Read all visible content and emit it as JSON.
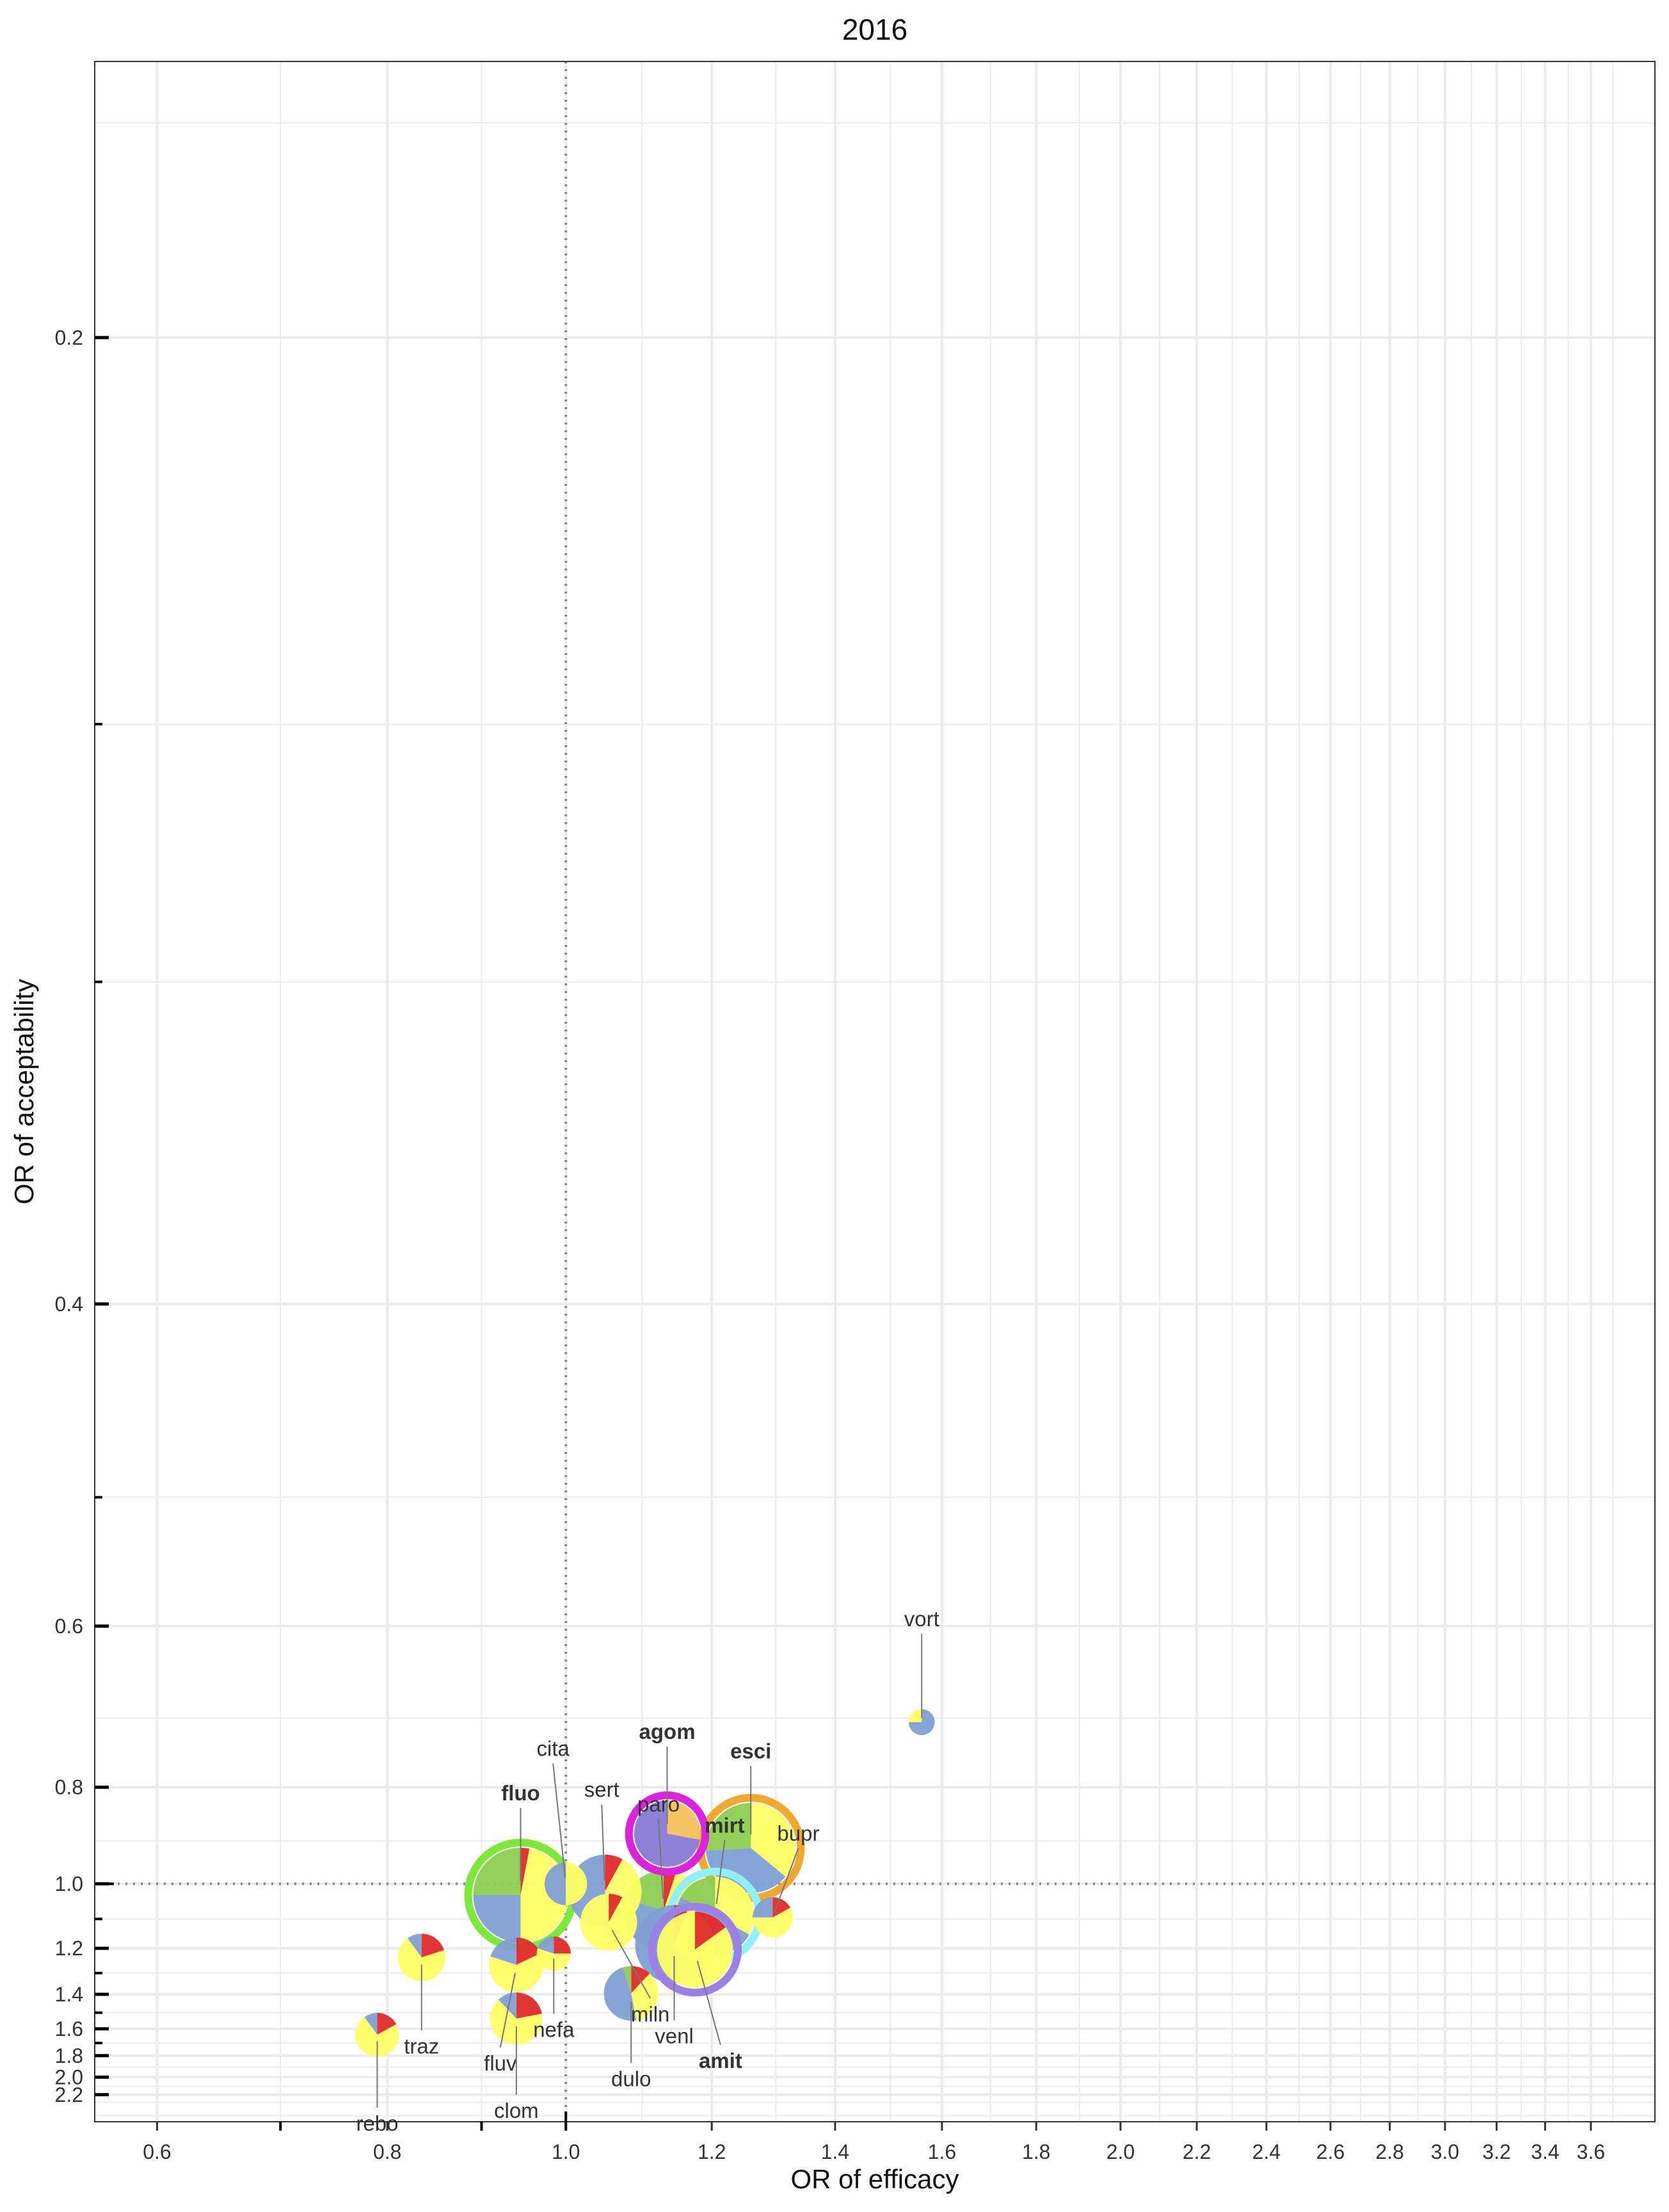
{
  "chart_data": {
    "type": "scatter",
    "title": "2016",
    "xlabel": "OR of efficacy",
    "ylabel": "OR of acceptability",
    "x_scale": "log",
    "y_scale": "reciprocal",
    "xlim": [
      0.555,
      3.9
    ],
    "ylim": [
      0.175,
      2.6
    ],
    "x_ticks": [
      0.6,
      0.8,
      1.0,
      1.2,
      1.4,
      1.6,
      1.8,
      2.0,
      2.2,
      2.4,
      2.6,
      2.8,
      3.0,
      3.2,
      3.4,
      3.6
    ],
    "x_tick_labels": [
      "0.6",
      "0.8",
      "1.0",
      "1.2",
      "1.4",
      "1.6",
      "1.8",
      "2.0",
      "2.2",
      "2.4",
      "2.6",
      "2.8",
      "3.0",
      "3.2",
      "3.4",
      "3.6"
    ],
    "y_ticks": [
      0.2,
      0.4,
      0.6,
      0.8,
      1.0,
      1.2,
      1.4,
      1.6,
      1.8,
      2.0,
      2.2
    ],
    "y_tick_labels": [
      "0.2",
      "0.4",
      "0.6",
      "0.8",
      "1.0",
      "1.2",
      "1.4",
      "1.6",
      "1.8",
      "2.0",
      "2.2"
    ],
    "reference_lines": {
      "x": 1.0,
      "y": 1.0
    },
    "grid": true,
    "colors": {
      "blue": "#7f9fd4",
      "yellow": "#ffff66",
      "red": "#e02b2b",
      "green": "#8ccd50",
      "orange": "#f5c15c",
      "violet": "#8a7ad6",
      "grid": "#ebebeb",
      "reference": "#888888"
    },
    "points": [
      {
        "label": "vort",
        "x": 1.56,
        "y": 0.705,
        "size": 0.55,
        "slices": [
          {
            "color": "blue",
            "share": 0.75
          },
          {
            "color": "yellow",
            "share": 0.25
          }
        ],
        "highlight": null,
        "label_color": "#333333",
        "bold": false,
        "label_dx": 0,
        "label_dy": -150
      },
      {
        "label": "agom",
        "x": 1.135,
        "y": 0.885,
        "size": 1.4,
        "slices": [
          {
            "color": "orange",
            "share": 0.28
          },
          {
            "color": "violet",
            "share": 0.72
          }
        ],
        "highlight": "#dd22dd",
        "label_color": "#b8528c",
        "bold": true,
        "label_dx": 0,
        "label_dy": -148
      },
      {
        "label": "esci",
        "x": 1.26,
        "y": 0.915,
        "size": 1.9,
        "slices": [
          {
            "color": "yellow",
            "share": 0.36
          },
          {
            "color": "blue",
            "share": 0.38
          },
          {
            "color": "green",
            "share": 0.26
          }
        ],
        "highlight": "#f0a830",
        "label_color": "#e0a020",
        "bold": true,
        "label_dx": 0,
        "label_dy": -140
      },
      {
        "label": "cita",
        "x": 1.0,
        "y": 1.0,
        "size": 0.9,
        "slices": [
          {
            "color": "yellow",
            "share": 0.5
          },
          {
            "color": "blue",
            "share": 0.5
          }
        ],
        "highlight": null,
        "label_color": "#333333",
        "bold": false,
        "label_dx": -20,
        "label_dy": -200
      },
      {
        "label": "sert",
        "x": 1.05,
        "y": 1.02,
        "size": 1.55,
        "slices": [
          {
            "color": "red",
            "share": 0.08
          },
          {
            "color": "yellow",
            "share": 0.4
          },
          {
            "color": "blue",
            "share": 0.52
          }
        ],
        "highlight": null,
        "label_color": "#333333",
        "bold": false,
        "label_dx": -5,
        "label_dy": -148
      },
      {
        "label": "fluo",
        "x": 0.945,
        "y": 1.03,
        "size": 2.0,
        "slices": [
          {
            "color": "red",
            "share": 0.03
          },
          {
            "color": "yellow",
            "share": 0.47
          },
          {
            "color": "blue",
            "share": 0.25
          },
          {
            "color": "green",
            "share": 0.25
          }
        ],
        "highlight": "#7de83a",
        "label_color": "#8ccd50",
        "bold": true,
        "label_dx": 0,
        "label_dy": -148
      },
      {
        "label": "paro",
        "x": 1.13,
        "y": 1.075,
        "size": 1.7,
        "slices": [
          {
            "color": "red",
            "share": 0.05
          },
          {
            "color": "yellow",
            "share": 0.4
          },
          {
            "color": "blue",
            "share": 0.35
          },
          {
            "color": "green",
            "share": 0.2
          }
        ],
        "highlight": null,
        "label_color": "#333333",
        "bold": false,
        "label_dx": -8,
        "label_dy": -155
      },
      {
        "label": "mirt",
        "x": 1.205,
        "y": 1.09,
        "size": 1.65,
        "slices": [
          {
            "color": "yellow",
            "share": 0.33
          },
          {
            "color": "blue",
            "share": 0.5
          },
          {
            "color": "green",
            "share": 0.17
          }
        ],
        "highlight": "#8ff0f8",
        "label_color": "#9cd0ea",
        "bold": true,
        "label_dx": 15,
        "label_dy": -130
      },
      {
        "label": "bupr",
        "x": 1.295,
        "y": 1.095,
        "size": 0.85,
        "slices": [
          {
            "color": "red",
            "share": 0.17
          },
          {
            "color": "yellow",
            "share": 0.58
          },
          {
            "color": "blue",
            "share": 0.25
          }
        ],
        "highlight": null,
        "label_color": "#333333",
        "bold": false,
        "label_dx": 40,
        "label_dy": -120
      },
      {
        "label": "miln",
        "x": 1.055,
        "y": 1.11,
        "size": 1.2,
        "slices": [
          {
            "color": "red",
            "share": 0.08
          },
          {
            "color": "yellow",
            "share": 0.92
          }
        ],
        "highlight": null,
        "label_color": "#333333",
        "bold": false,
        "label_dx": 65,
        "label_dy": 155
      },
      {
        "label": "venl",
        "x": 1.145,
        "y": 1.185,
        "size": 1.65,
        "slices": [
          {
            "color": "red",
            "share": 0.06
          },
          {
            "color": "yellow",
            "share": 0.3
          },
          {
            "color": "blue",
            "share": 0.64
          }
        ],
        "highlight": null,
        "label_color": "#333333",
        "bold": false,
        "label_dx": 0,
        "label_dy": 155
      },
      {
        "label": "amit",
        "x": 1.175,
        "y": 1.205,
        "size": 1.6,
        "slices": [
          {
            "color": "red",
            "share": 0.15
          },
          {
            "color": "yellow",
            "share": 0.85
          }
        ],
        "highlight": "#9b80e6",
        "label_color": "#7a6ae0",
        "bold": true,
        "label_dx": 40,
        "label_dy": 185
      },
      {
        "label": "traz",
        "x": 0.835,
        "y": 1.235,
        "size": 1.0,
        "slices": [
          {
            "color": "red",
            "share": 0.2
          },
          {
            "color": "yellow",
            "share": 0.7
          },
          {
            "color": "blue",
            "share": 0.1
          }
        ],
        "highlight": null,
        "label_color": "#333333",
        "bold": false,
        "label_dx": 0,
        "label_dy": 150
      },
      {
        "label": "nefa",
        "x": 0.985,
        "y": 1.22,
        "size": 0.72,
        "slices": [
          {
            "color": "red",
            "share": 0.25
          },
          {
            "color": "yellow",
            "share": 0.55
          },
          {
            "color": "blue",
            "share": 0.2
          }
        ],
        "highlight": null,
        "label_color": "#333333",
        "bold": false,
        "label_dx": 0,
        "label_dy": 130
      },
      {
        "label": "fluv",
        "x": 0.94,
        "y": 1.265,
        "size": 1.15,
        "slices": [
          {
            "color": "red",
            "share": 0.18
          },
          {
            "color": "yellow",
            "share": 0.62
          },
          {
            "color": "blue",
            "share": 0.2
          }
        ],
        "highlight": null,
        "label_color": "#333333",
        "bold": false,
        "label_dx": -25,
        "label_dy": 165
      },
      {
        "label": "dulo",
        "x": 1.085,
        "y": 1.395,
        "size": 1.15,
        "slices": [
          {
            "color": "red",
            "share": 0.12
          },
          {
            "color": "yellow",
            "share": 0.35
          },
          {
            "color": "blue",
            "share": 0.48
          },
          {
            "color": "green",
            "share": 0.05
          }
        ],
        "highlight": null,
        "label_color": "#333333",
        "bold": false,
        "label_dx": 0,
        "label_dy": 145
      },
      {
        "label": "clom",
        "x": 0.94,
        "y": 1.535,
        "size": 1.1,
        "slices": [
          {
            "color": "red",
            "share": 0.22
          },
          {
            "color": "yellow",
            "share": 0.66
          },
          {
            "color": "blue",
            "share": 0.12
          }
        ],
        "highlight": null,
        "label_color": "#333333",
        "bold": false,
        "label_dx": 0,
        "label_dy": 155
      },
      {
        "label": "rebo",
        "x": 0.79,
        "y": 1.64,
        "size": 0.92,
        "slices": [
          {
            "color": "red",
            "share": 0.17
          },
          {
            "color": "yellow",
            "share": 0.73
          },
          {
            "color": "blue",
            "share": 0.1
          }
        ],
        "highlight": null,
        "label_color": "#333333",
        "bold": false,
        "label_dx": 0,
        "label_dy": 150
      }
    ]
  }
}
